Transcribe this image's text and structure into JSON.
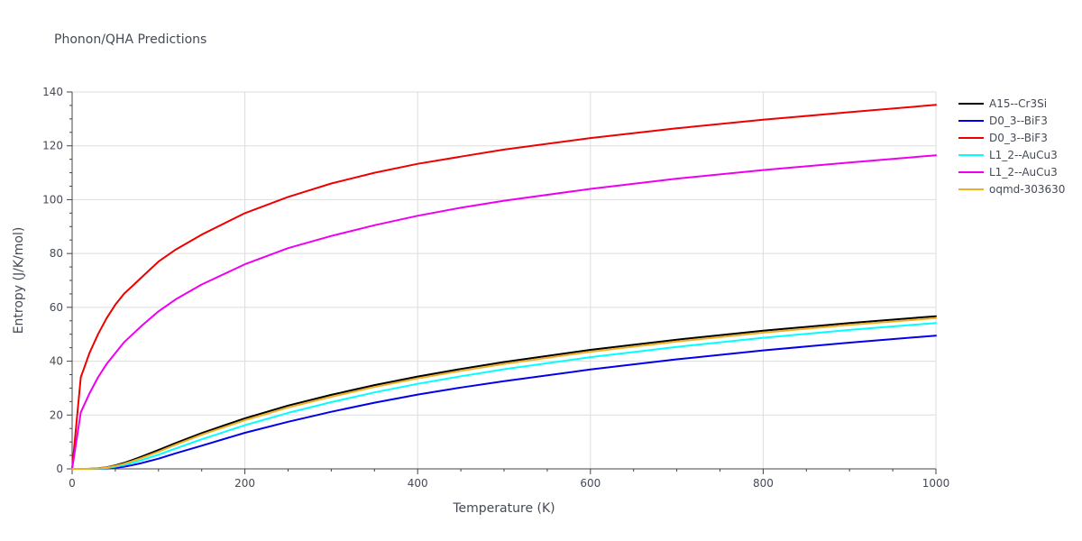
{
  "chart_data": {
    "type": "line",
    "title": "Phonon/QHA Predictions",
    "xlabel": "Temperature (K)",
    "ylabel": "Entropy (J/K/mol)",
    "xlim": [
      0,
      1000
    ],
    "ylim": [
      0,
      140
    ],
    "xticks": [
      0,
      200,
      400,
      600,
      800,
      1000
    ],
    "yticks": [
      0,
      20,
      40,
      60,
      80,
      100,
      120,
      140
    ],
    "grid": true,
    "legend_position": "top-right",
    "x": [
      0,
      10,
      20,
      30,
      40,
      50,
      60,
      70,
      80,
      100,
      120,
      150,
      200,
      250,
      300,
      350,
      400,
      450,
      500,
      600,
      700,
      800,
      900,
      1000
    ],
    "series": [
      {
        "name": "A15--Cr3Si",
        "color": "#000000",
        "values": [
          0,
          0,
          0.05,
          0.2,
          0.6,
          1.3,
          2.2,
          3.3,
          4.5,
          7.0,
          9.6,
          13.3,
          18.8,
          23.5,
          27.5,
          31.1,
          34.3,
          37.1,
          39.7,
          44.2,
          48.0,
          51.3,
          54.2,
          56.7
        ]
      },
      {
        "name": "D0_3--BiF3",
        "color": "#0000ee",
        "values": [
          0,
          0,
          0,
          0.05,
          0.15,
          0.4,
          0.8,
          1.4,
          2.1,
          3.8,
          5.8,
          8.6,
          13.4,
          17.5,
          21.2,
          24.6,
          27.6,
          30.2,
          32.6,
          36.9,
          40.7,
          44.0,
          46.9,
          49.5
        ]
      },
      {
        "name": "D0_3--BiF3",
        "color": "#ee0000",
        "values": [
          0,
          34,
          43,
          50,
          56,
          61,
          65,
          68,
          71,
          77,
          81.5,
          87,
          95,
          101,
          106,
          110,
          113.3,
          116,
          118.6,
          122.9,
          126.5,
          129.7,
          132.5,
          135.2
        ]
      },
      {
        "name": "L1_2--AuCu3",
        "color": "#00ffff",
        "values": [
          0,
          0,
          0,
          0.1,
          0.3,
          0.8,
          1.4,
          2.2,
          3.2,
          5.3,
          7.6,
          11.0,
          16.2,
          20.8,
          24.8,
          28.4,
          31.6,
          34.4,
          37.0,
          41.5,
          45.3,
          48.7,
          51.6,
          54.2
        ]
      },
      {
        "name": "L1_2--AuCu3",
        "color": "#ee00ee",
        "values": [
          0,
          21,
          28,
          34,
          39,
          43,
          47,
          50,
          53,
          58.5,
          63,
          68.5,
          76,
          82,
          86.5,
          90.5,
          94,
          97,
          99.6,
          104,
          107.8,
          111,
          113.8,
          116.5
        ]
      },
      {
        "name": "oqmd-303630",
        "color": "#f0b020",
        "values": [
          0,
          0,
          0.05,
          0.15,
          0.5,
          1.1,
          1.9,
          2.9,
          4.0,
          6.4,
          9.0,
          12.7,
          18.1,
          22.8,
          26.8,
          30.4,
          33.6,
          36.4,
          39.0,
          43.5,
          47.3,
          50.6,
          53.5,
          56.0
        ]
      }
    ]
  }
}
